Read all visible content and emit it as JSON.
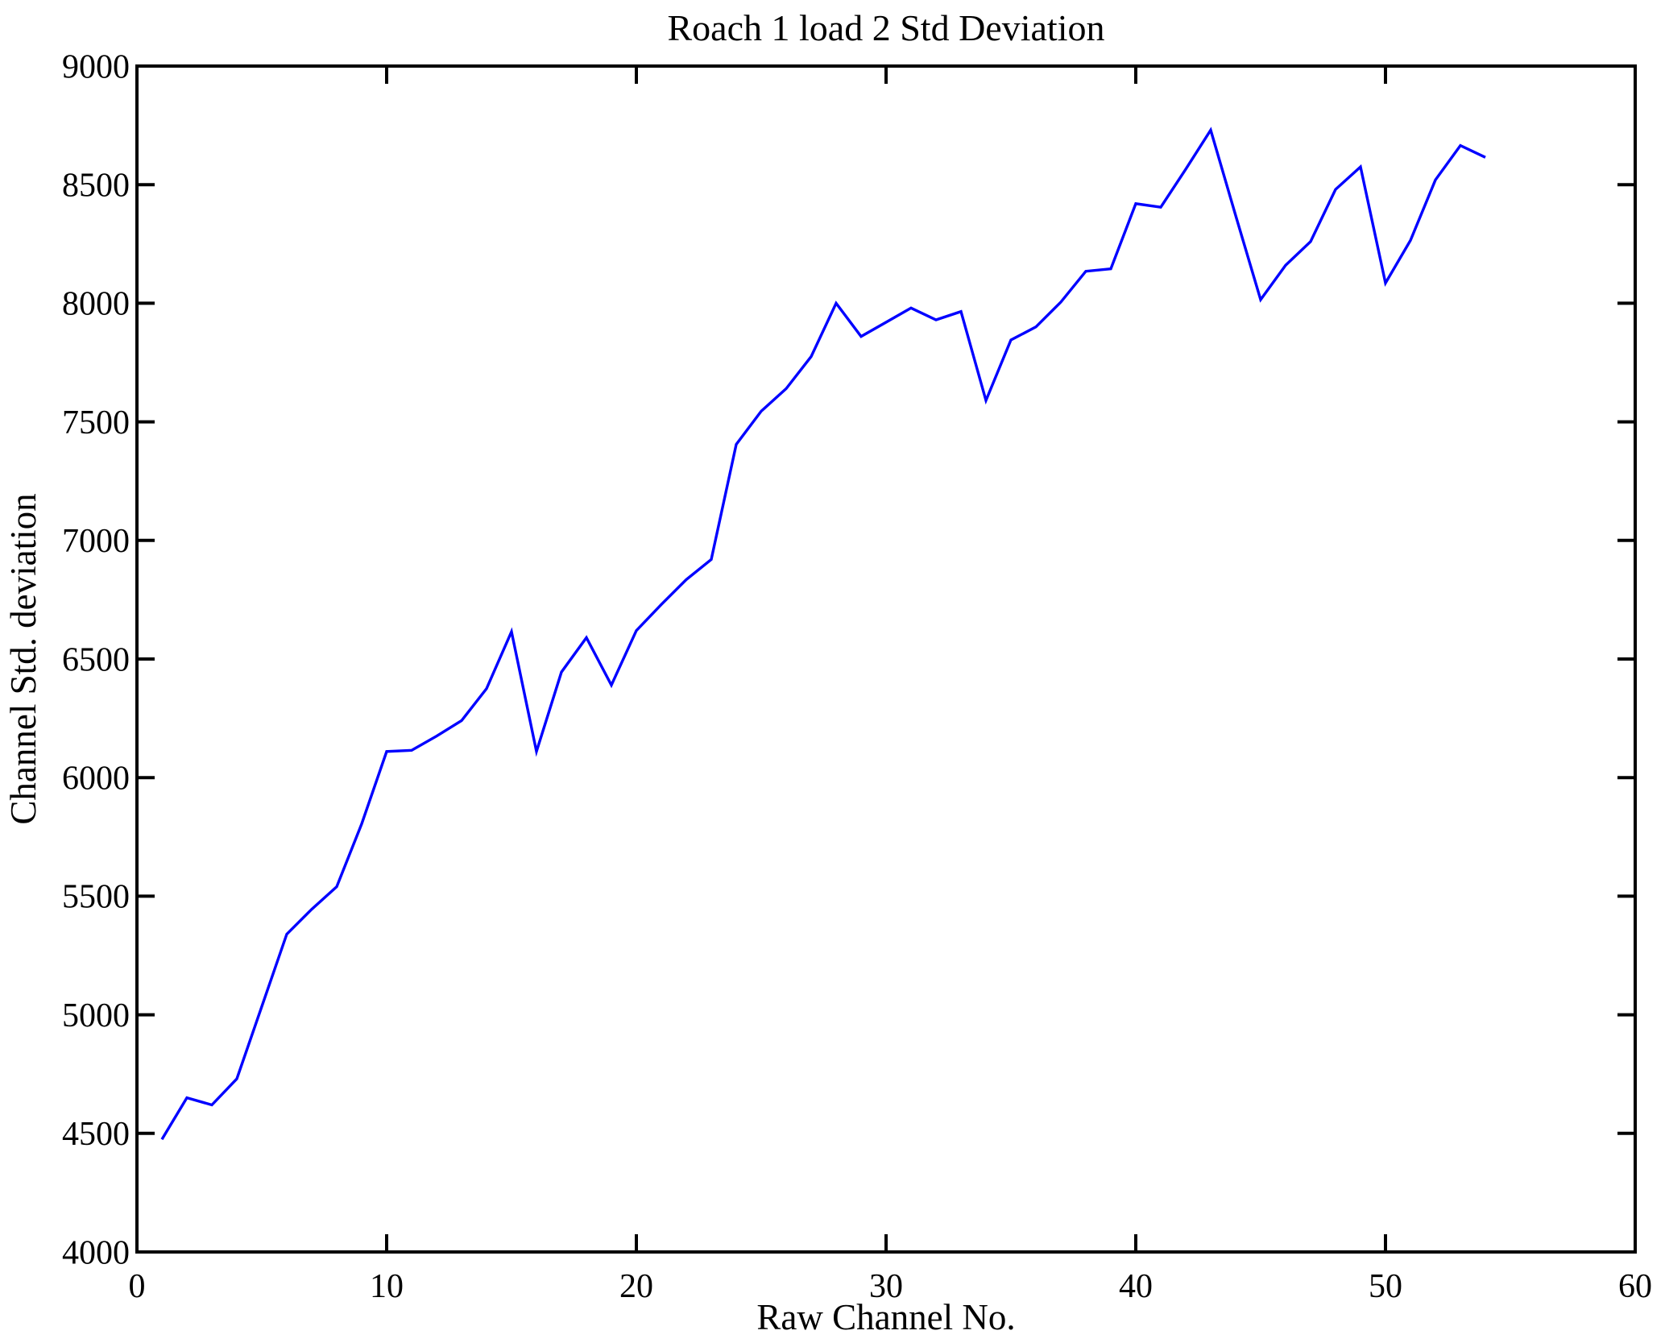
{
  "figure": {
    "background": "#ffffff"
  },
  "chart_data": {
    "type": "line",
    "title": "Roach 1 load 2 Std Deviation",
    "xlabel": "Raw Channel No.",
    "ylabel": "Channel Std. deviation",
    "xlim": [
      0,
      60
    ],
    "ylim": [
      4000,
      9000
    ],
    "x_ticks": [
      0,
      10,
      20,
      30,
      40,
      50,
      60
    ],
    "y_ticks": [
      4000,
      4500,
      5000,
      5500,
      6000,
      6500,
      7000,
      7500,
      8000,
      8500,
      9000
    ],
    "grid": false,
    "legend_position": "none",
    "line_color": "#0000ff",
    "axis_color": "#000000",
    "x": [
      1,
      2,
      3,
      4,
      5,
      6,
      7,
      8,
      9,
      10,
      11,
      12,
      13,
      14,
      15,
      16,
      17,
      18,
      19,
      20,
      21,
      22,
      23,
      24,
      25,
      26,
      27,
      28,
      29,
      30,
      31,
      32,
      33,
      34,
      35,
      36,
      37,
      38,
      39,
      40,
      41,
      42,
      43,
      44,
      45,
      46,
      47,
      48,
      49,
      50,
      51,
      52,
      53,
      54
    ],
    "y": [
      4475,
      4650,
      4620,
      4730,
      5035,
      5340,
      5445,
      5540,
      5805,
      6110,
      6115,
      6175,
      6240,
      6375,
      6615,
      6110,
      6445,
      6590,
      6390,
      6620,
      6730,
      6835,
      6920,
      7405,
      7545,
      7640,
      7775,
      8000,
      7860,
      7920,
      7980,
      7930,
      7965,
      7590,
      7845,
      7900,
      8005,
      8135,
      8145,
      8420,
      8405,
      8565,
      8730,
      8370,
      8015,
      8160,
      8260,
      8480,
      8575,
      8085,
      8265,
      8520,
      8665,
      8615
    ]
  }
}
